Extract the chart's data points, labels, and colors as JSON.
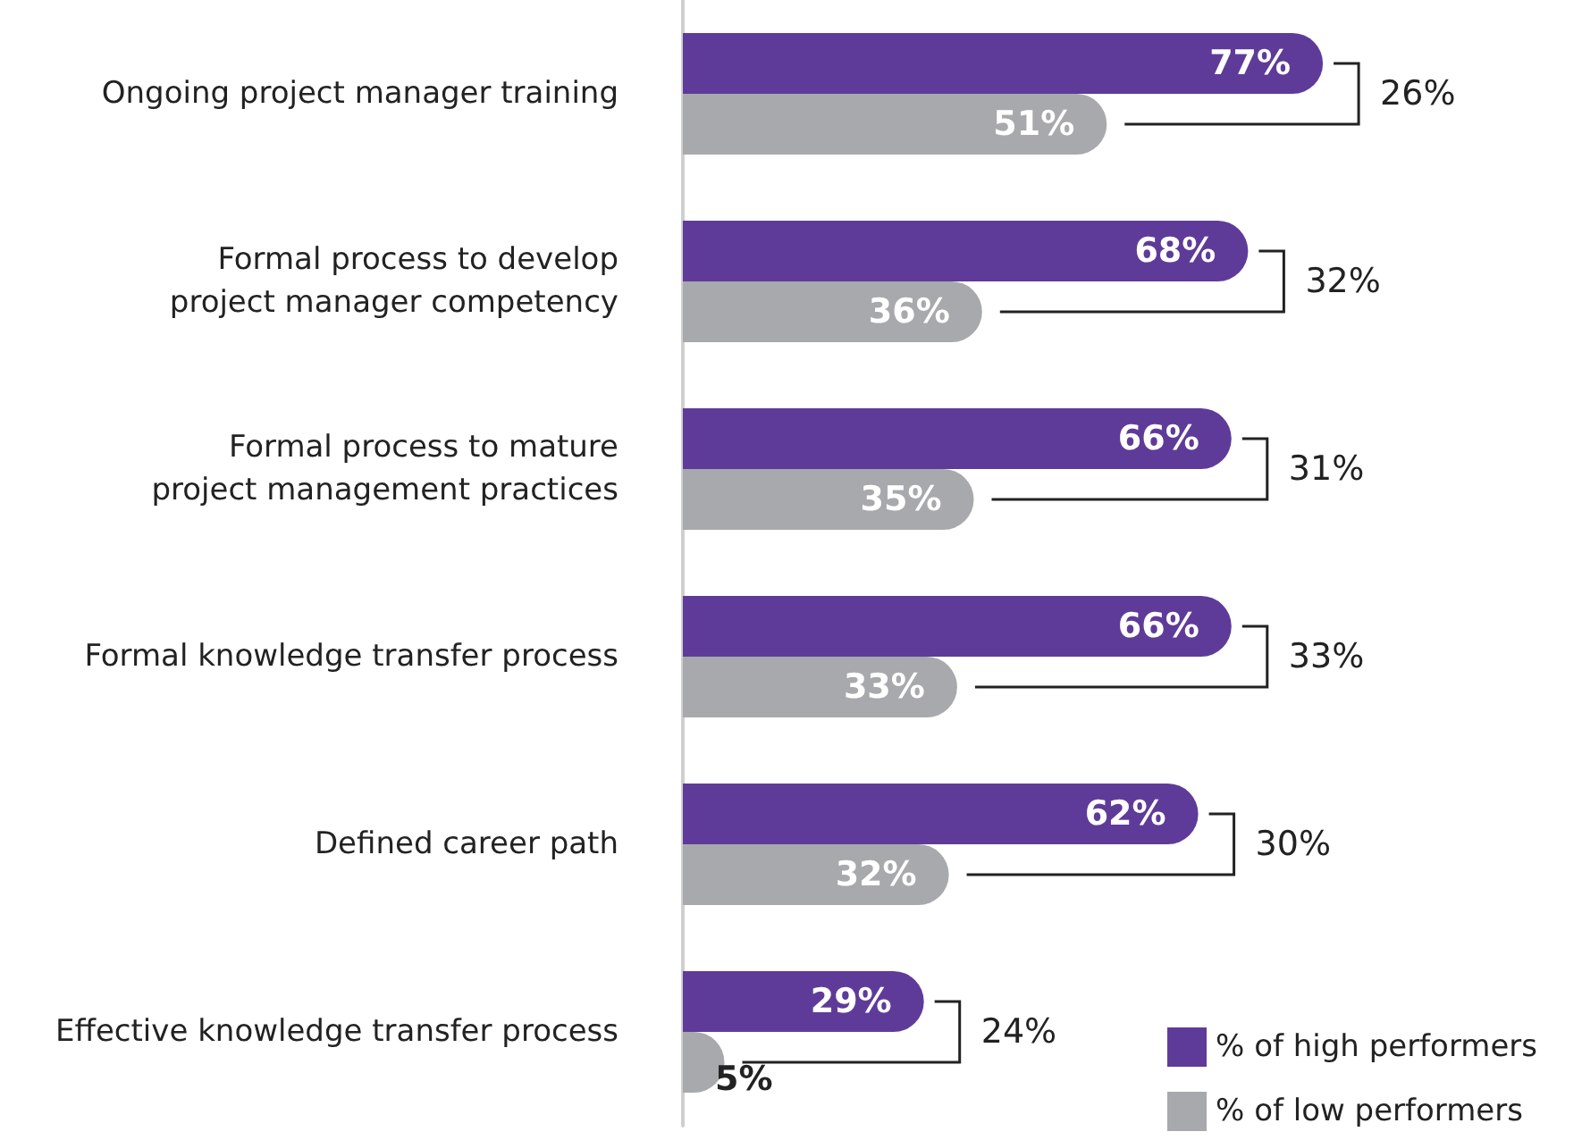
{
  "chart_data": {
    "type": "bar",
    "orientation": "horizontal",
    "categories": [
      "Ongoing project manager training",
      "Formal process to develop\nproject manager competency",
      "Formal process to mature\nproject management practices",
      "Formal knowledge transfer process",
      "Defined career path",
      "Effective knowledge transfer process"
    ],
    "series": [
      {
        "name": "% of high performers",
        "color": "#5f3b99",
        "values": [
          77,
          68,
          66,
          66,
          62,
          29
        ],
        "value_labels": [
          "77%",
          "68%",
          "66%",
          "66%",
          "62%",
          "29%"
        ]
      },
      {
        "name": "% of low performers",
        "color": "#a7a9ac",
        "values": [
          51,
          36,
          35,
          33,
          32,
          5
        ],
        "value_labels": [
          "51%",
          "36%",
          "35%",
          "33%",
          "32%",
          "5%"
        ]
      }
    ],
    "legend": "bottom right",
    "annotations": [
      "26%",
      "32%",
      "31%",
      "33%",
      "30%",
      "24%"
    ]
  }
}
